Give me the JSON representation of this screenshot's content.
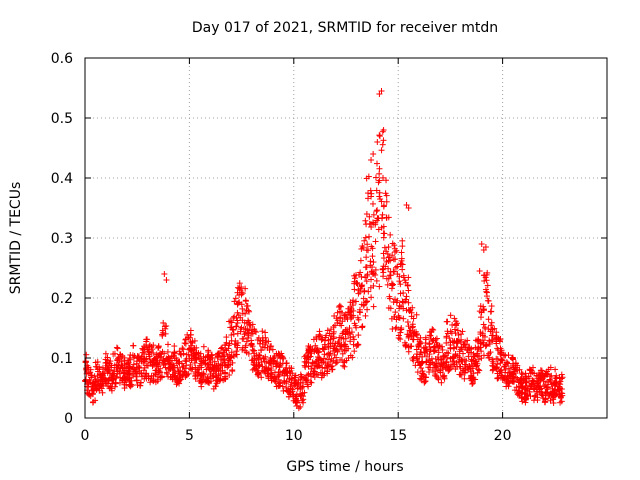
{
  "chart_data": {
    "type": "scatter",
    "title": "Day 017 of 2021, SRMTID for receiver mtdn",
    "xlabel": "GPS time / hours",
    "ylabel": "SRMTID / TECUs",
    "xlim": [
      0,
      25
    ],
    "ylim": [
      0,
      0.6
    ],
    "xticks": [
      0,
      5,
      10,
      15,
      20
    ],
    "yticks": [
      0,
      0.1,
      0.2,
      0.3,
      0.4,
      0.5,
      0.6
    ],
    "marker": "+",
    "color": "#ff0000",
    "grid": true,
    "series": [
      {
        "name": "SRMTID",
        "x": [
          0.0,
          0.2,
          0.4,
          0.6,
          0.8,
          1.0,
          1.2,
          1.4,
          1.6,
          1.8,
          2.0,
          2.2,
          2.4,
          2.6,
          2.8,
          3.0,
          3.2,
          3.4,
          3.6,
          3.8,
          4.0,
          4.2,
          4.4,
          4.6,
          4.8,
          5.0,
          5.2,
          5.4,
          5.6,
          5.8,
          6.0,
          6.2,
          6.4,
          6.6,
          6.8,
          7.0,
          7.2,
          7.4,
          7.6,
          7.8,
          8.0,
          8.2,
          8.4,
          8.6,
          8.8,
          9.0,
          9.2,
          9.4,
          9.6,
          9.8,
          10.0,
          10.2,
          10.4,
          10.6,
          10.8,
          11.0,
          11.2,
          11.4,
          11.6,
          11.8,
          12.0,
          12.2,
          12.4,
          12.6,
          12.8,
          13.0,
          13.2,
          13.4,
          13.6,
          13.8,
          14.0,
          14.2,
          14.4,
          14.6,
          14.8,
          15.0,
          15.2,
          15.4,
          15.6,
          15.8,
          16.0,
          16.2,
          16.4,
          16.6,
          16.8,
          17.0,
          17.2,
          17.4,
          17.6,
          17.8,
          18.0,
          18.2,
          18.4,
          18.6,
          18.8,
          19.0,
          19.2,
          19.4,
          19.6,
          19.8,
          20.0,
          20.2,
          20.4,
          20.6,
          20.8,
          21.0,
          21.2,
          21.4,
          21.6,
          21.8,
          22.0,
          22.2,
          22.4,
          22.6,
          22.8
        ],
        "y": [
          0.08,
          0.06,
          0.05,
          0.07,
          0.06,
          0.08,
          0.07,
          0.08,
          0.09,
          0.08,
          0.07,
          0.08,
          0.09,
          0.08,
          0.09,
          0.1,
          0.09,
          0.08,
          0.09,
          0.12,
          0.1,
          0.09,
          0.08,
          0.09,
          0.1,
          0.11,
          0.1,
          0.09,
          0.08,
          0.09,
          0.08,
          0.07,
          0.08,
          0.09,
          0.1,
          0.12,
          0.15,
          0.17,
          0.16,
          0.14,
          0.12,
          0.11,
          0.1,
          0.11,
          0.1,
          0.09,
          0.08,
          0.08,
          0.07,
          0.06,
          0.05,
          0.04,
          0.05,
          0.08,
          0.09,
          0.1,
          0.11,
          0.1,
          0.11,
          0.12,
          0.13,
          0.14,
          0.13,
          0.14,
          0.15,
          0.18,
          0.22,
          0.26,
          0.3,
          0.28,
          0.32,
          0.36,
          0.3,
          0.25,
          0.22,
          0.2,
          0.22,
          0.18,
          0.15,
          0.13,
          0.1,
          0.09,
          0.1,
          0.11,
          0.1,
          0.09,
          0.1,
          0.12,
          0.13,
          0.12,
          0.11,
          0.1,
          0.09,
          0.08,
          0.1,
          0.14,
          0.18,
          0.15,
          0.12,
          0.1,
          0.09,
          0.08,
          0.08,
          0.07,
          0.06,
          0.05,
          0.05,
          0.06,
          0.05,
          0.06,
          0.05,
          0.06,
          0.05,
          0.06,
          0.05
        ],
        "highlights_x": [
          3.8,
          3.9,
          14.1,
          14.2,
          14.3,
          13.7,
          13.8,
          14.0,
          13.5,
          15.4,
          15.5,
          19.0,
          19.1,
          19.2,
          18.9
        ],
        "highlights_y": [
          0.24,
          0.23,
          0.54,
          0.545,
          0.48,
          0.43,
          0.44,
          0.46,
          0.34,
          0.355,
          0.35,
          0.29,
          0.28,
          0.285,
          0.245
        ]
      }
    ]
  }
}
